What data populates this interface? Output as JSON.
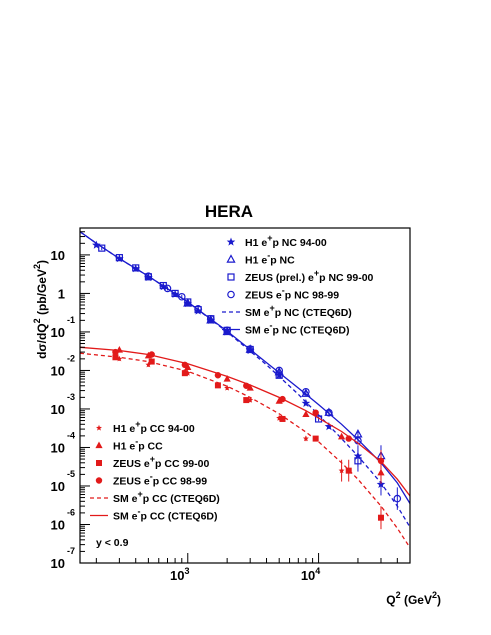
{
  "chart_data": {
    "type": "scatter",
    "title": "HERA",
    "xlabel": "Q^2 (GeV^2)",
    "ylabel": "dσ/dQ^2 (pb/GeV^2)",
    "x_scale": "log",
    "y_scale": "log",
    "xlim": [
      150,
      50000
    ],
    "ylim": [
      1e-07,
      50
    ],
    "x_tick_labels": [
      {
        "value": 1000,
        "mantissa": "10",
        "exponent": "3"
      },
      {
        "value": 10000,
        "mantissa": "10",
        "exponent": "4"
      }
    ],
    "y_tick_labels": [
      {
        "value": 10,
        "mantissa": "10",
        "exponent": ""
      },
      {
        "value": 1,
        "mantissa": "1",
        "exponent": ""
      },
      {
        "value": 0.1,
        "mantissa": "10",
        "exponent": "-1"
      },
      {
        "value": 0.01,
        "mantissa": "10",
        "exponent": "-2"
      },
      {
        "value": 0.001,
        "mantissa": "10",
        "exponent": "-3"
      },
      {
        "value": 0.0001,
        "mantissa": "10",
        "exponent": "-4"
      },
      {
        "value": 1e-05,
        "mantissa": "10",
        "exponent": "-5"
      },
      {
        "value": 1e-06,
        "mantissa": "10",
        "exponent": "-6"
      },
      {
        "value": 1e-07,
        "mantissa": "10",
        "exponent": "-7"
      }
    ],
    "annotation": "y < 0.9",
    "colors": {
      "nc": "#1a1acd",
      "cc": "#e21a1a",
      "axis": "#000000"
    },
    "legend_nc_placement": "top-right",
    "legend_cc_placement": "bottom-left",
    "series": [
      {
        "name": "H1 e+p NC 94-00",
        "legend": [
          "H1 e",
          "+",
          "p NC 94-00"
        ],
        "group": "nc",
        "marker": "star",
        "x": [
          200,
          300,
          400,
          500,
          650,
          800,
          1000,
          1200,
          1500,
          2000,
          3000,
          5000,
          8000,
          12000,
          20000,
          30000
        ],
        "y": [
          18,
          8.0,
          4.4,
          2.6,
          1.5,
          0.95,
          0.55,
          0.35,
          0.2,
          0.1,
          0.033,
          0.0075,
          0.0014,
          0.00035,
          6e-05,
          1.1e-05
        ]
      },
      {
        "name": "H1 e-p NC",
        "legend": [
          "H1 e",
          "-",
          "p NC"
        ],
        "group": "nc",
        "marker": "triangle-open",
        "x": [
          1000,
          1500,
          2000,
          3000,
          5000,
          8000,
          12000,
          20000,
          30000
        ],
        "y": [
          0.55,
          0.2,
          0.1,
          0.035,
          0.009,
          0.0025,
          0.0008,
          0.00022,
          6e-05
        ]
      },
      {
        "name": "ZEUS (prel.) e+p NC 99-00",
        "legend": [
          "ZEUS (prel.) e",
          "+",
          "p NC 99-00"
        ],
        "group": "nc",
        "marker": "square-open",
        "x": [
          220,
          300,
          400,
          500,
          650,
          800,
          1000,
          1200,
          1500,
          2000,
          3000,
          5000,
          10000,
          20000
        ],
        "y": [
          15,
          8.5,
          4.6,
          2.7,
          1.6,
          1.0,
          0.6,
          0.38,
          0.22,
          0.11,
          0.035,
          0.0075,
          0.00055,
          4.5e-05
        ]
      },
      {
        "name": "ZEUS e-p NC 98-99",
        "legend": [
          "ZEUS e",
          "-",
          "p NC 98-99"
        ],
        "group": "nc",
        "marker": "circle-open",
        "x": [
          500,
          700,
          900,
          1200,
          1500,
          2000,
          3000,
          5000,
          8000,
          12000,
          20000,
          40000
        ],
        "y": [
          2.8,
          1.35,
          0.82,
          0.4,
          0.22,
          0.11,
          0.036,
          0.01,
          0.0028,
          0.0008,
          0.00015,
          4.7e-06
        ]
      },
      {
        "name": "SM e+p NC (CTEQ6D)",
        "legend": [
          "SM e",
          "+",
          "p NC (CTEQ6D)"
        ],
        "group": "nc",
        "line": "dashed",
        "x": [
          150,
          200,
          300,
          500,
          1000,
          2000,
          4000,
          7000,
          10000,
          15000,
          20000,
          30000,
          40000,
          50000
        ],
        "y": [
          40,
          20,
          8,
          2.8,
          0.6,
          0.1,
          0.014,
          0.0024,
          0.0007,
          0.00017,
          6e-05,
          1.2e-05,
          3e-06,
          8.5e-07
        ]
      },
      {
        "name": "SM e-p NC (CTEQ6D)",
        "legend": [
          "SM e",
          "-",
          "p NC (CTEQ6D)"
        ],
        "group": "nc",
        "line": "solid",
        "x": [
          150,
          200,
          300,
          500,
          1000,
          2000,
          4000,
          7000,
          10000,
          15000,
          20000,
          30000,
          40000,
          50000
        ],
        "y": [
          40,
          20,
          8,
          2.8,
          0.6,
          0.105,
          0.016,
          0.0035,
          0.0013,
          0.0004,
          0.00016,
          4e-05,
          1.2e-05,
          3.5e-06
        ]
      },
      {
        "name": "H1 e+p CC 94-00",
        "legend": [
          "H1 e",
          "+",
          "p CC 94-00"
        ],
        "group": "cc",
        "marker": "star-small",
        "x": [
          300,
          500,
          1000,
          2000,
          3000,
          5000,
          8000,
          15000
        ],
        "y": [
          0.02,
          0.014,
          0.0085,
          0.0035,
          0.0017,
          0.00058,
          0.00017,
          2.5e-05
        ]
      },
      {
        "name": "H1 e-p CC",
        "legend": [
          "H1 e",
          "-",
          "p CC"
        ],
        "group": "cc",
        "marker": "triangle-filled",
        "x": [
          300,
          500,
          1000,
          2000,
          3000,
          5000,
          8000,
          15000,
          30000
        ],
        "y": [
          0.034,
          0.024,
          0.012,
          0.006,
          0.0035,
          0.0016,
          0.00072,
          0.00019,
          2.2e-05
        ]
      },
      {
        "name": "ZEUS e+p CC 99-00",
        "legend": [
          "ZEUS e",
          "+",
          "p CC 99-00"
        ],
        "group": "cc",
        "marker": "square-filled",
        "x": [
          280,
          530,
          950,
          1700,
          2800,
          5300,
          9500,
          17000,
          30000
        ],
        "y": [
          0.022,
          0.017,
          0.0085,
          0.0041,
          0.0017,
          0.00055,
          0.00017,
          2.5e-05,
          1.5e-06
        ]
      },
      {
        "name": "ZEUS e-p CC 98-99",
        "legend": [
          "ZEUS e",
          "-",
          "p CC 98-99"
        ],
        "group": "cc",
        "marker": "circle-filled",
        "x": [
          280,
          530,
          950,
          1700,
          2800,
          5300,
          9500,
          17000,
          30000
        ],
        "y": [
          0.03,
          0.026,
          0.014,
          0.0075,
          0.004,
          0.0018,
          0.0008,
          0.00017,
          4.5e-05
        ]
      },
      {
        "name": "SM e+p CC (CTEQ6D)",
        "legend": [
          "SM e",
          "+",
          "p CC (CTEQ6D)"
        ],
        "group": "cc",
        "line": "dashed",
        "x": [
          150,
          300,
          500,
          1000,
          2000,
          3000,
          5000,
          8000,
          10000,
          15000,
          20000,
          30000,
          40000,
          50000
        ],
        "y": [
          0.028,
          0.022,
          0.017,
          0.0095,
          0.0039,
          0.002,
          0.00075,
          0.00025,
          0.00014,
          4e-05,
          1.5e-05,
          3e-06,
          8e-07,
          2.5e-07
        ]
      },
      {
        "name": "SM e-p CC (CTEQ6D)",
        "legend": [
          "SM e",
          "-",
          "p CC (CTEQ6D)"
        ],
        "group": "cc",
        "line": "solid",
        "x": [
          150,
          300,
          500,
          1000,
          2000,
          3000,
          5000,
          8000,
          10000,
          15000,
          20000,
          30000,
          40000,
          50000
        ],
        "y": [
          0.04,
          0.033,
          0.026,
          0.015,
          0.007,
          0.0042,
          0.002,
          0.0009,
          0.00058,
          0.00026,
          0.00013,
          4.3e-05,
          1.5e-05,
          5.5e-06
        ]
      }
    ]
  }
}
